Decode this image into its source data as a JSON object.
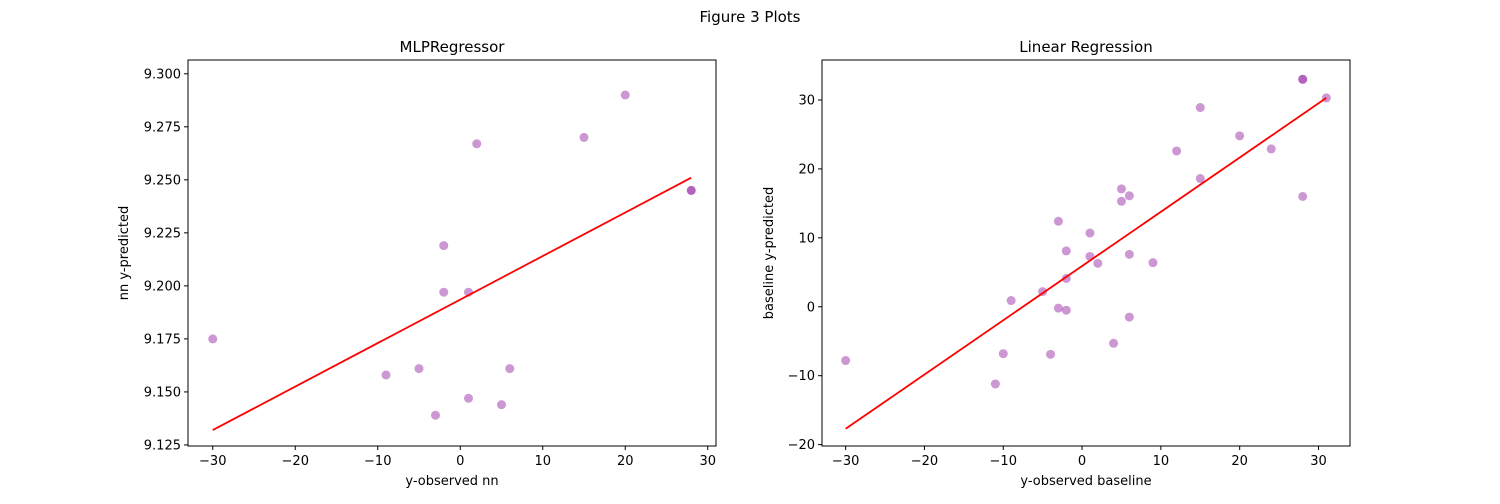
{
  "figure": {
    "title": "Figure 3 Plots"
  },
  "colors": {
    "points": "#9b30a8",
    "fit": "#ff0000",
    "axes": "#000000"
  },
  "chart_data": [
    {
      "type": "scatter",
      "title": "MLPRegressor",
      "xlabel": "y-observed nn",
      "ylabel": "nn y-predicted",
      "xlim": [
        -33,
        31
      ],
      "ylim": [
        9.1245,
        9.3065
      ],
      "xticks": [
        -30,
        -20,
        -10,
        0,
        10,
        20,
        30
      ],
      "yticks": [
        9.125,
        9.15,
        9.175,
        9.2,
        9.225,
        9.25,
        9.275,
        9.3
      ],
      "ytick_labels": [
        "9.125",
        "9.150",
        "9.175",
        "9.200",
        "9.225",
        "9.250",
        "9.275",
        "9.300"
      ],
      "grid": false,
      "series": [
        {
          "kind": "points",
          "x": [
            -30,
            -9,
            -5,
            -3,
            -2,
            -2,
            1,
            1,
            2,
            5,
            6,
            15,
            20,
            28,
            28
          ],
          "y": [
            9.175,
            9.158,
            9.161,
            9.139,
            9.219,
            9.197,
            9.197,
            9.147,
            9.267,
            9.144,
            9.161,
            9.27,
            9.29,
            9.245,
            9.245
          ]
        },
        {
          "kind": "fit-line",
          "x": [
            -30,
            28
          ],
          "y": [
            9.132,
            9.251
          ]
        }
      ]
    },
    {
      "type": "scatter",
      "title": "Linear Regression",
      "xlabel": "y-observed baseline",
      "ylabel": "baseline y-predicted",
      "xlim": [
        -33,
        34
      ],
      "ylim": [
        -20.2,
        35.8
      ],
      "xticks": [
        -30,
        -20,
        -10,
        0,
        10,
        20,
        30
      ],
      "yticks": [
        -20,
        -10,
        0,
        10,
        20,
        30
      ],
      "ytick_labels": [
        "−20",
        "−10",
        "0",
        "10",
        "20",
        "30"
      ],
      "grid": false,
      "series": [
        {
          "kind": "points",
          "x": [
            -30,
            -11,
            -10,
            -9,
            -5,
            -4,
            -3,
            -3,
            -2,
            -2,
            -2,
            1,
            1,
            2,
            4,
            5,
            5,
            6,
            6,
            6,
            9,
            12,
            15,
            15,
            20,
            24,
            28,
            28,
            28,
            31
          ],
          "y": [
            -7.8,
            -11.2,
            -6.8,
            0.9,
            2.2,
            -6.9,
            12.4,
            -0.2,
            8.1,
            4.1,
            -0.5,
            10.7,
            7.3,
            6.3,
            -5.3,
            17.1,
            15.3,
            16.1,
            7.6,
            -1.5,
            6.4,
            22.6,
            28.9,
            18.6,
            24.8,
            22.9,
            33,
            33,
            16,
            30.3
          ]
        },
        {
          "kind": "fit-line",
          "x": [
            -30,
            31
          ],
          "y": [
            -17.7,
            30.3
          ]
        }
      ]
    }
  ]
}
